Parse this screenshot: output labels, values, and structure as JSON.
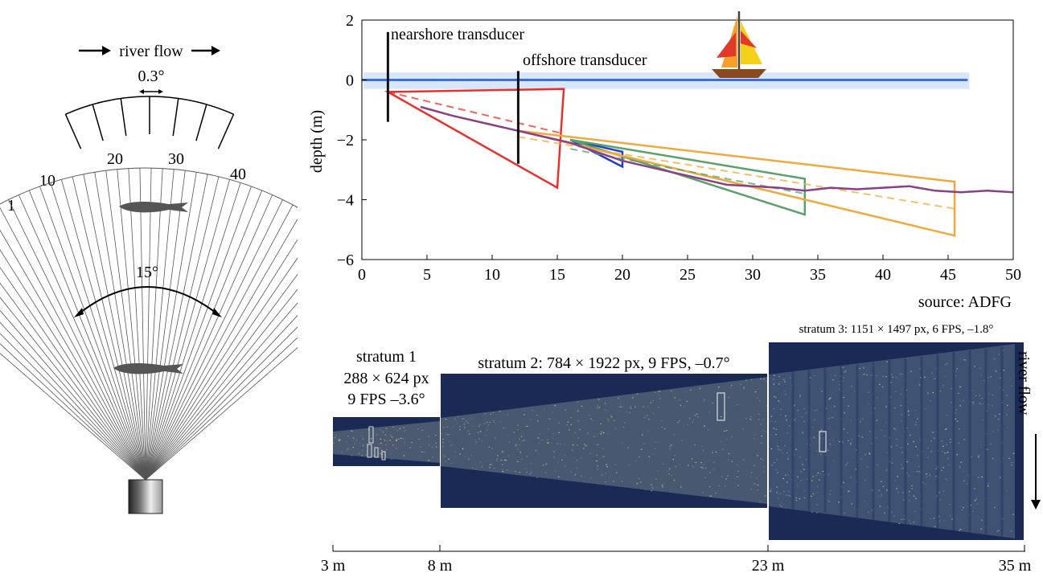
{
  "fan": {
    "flow_label": "river flow",
    "inset_angle": "0.3°",
    "beam_numbers": [
      "1",
      "10",
      "20",
      "30",
      "40"
    ],
    "fan_angle": "15°"
  },
  "depth_profile": {
    "ylabel": "depth (m)",
    "x_ticks": [
      "0",
      "5",
      "10",
      "15",
      "20",
      "25",
      "30",
      "35",
      "40",
      "45",
      "50"
    ],
    "y_ticks": [
      "2",
      "0",
      "−2",
      "−4",
      "−6"
    ],
    "nearshore_label": "nearshore transducer",
    "offshore_label": "offshore transducer",
    "source": "source: ADFG"
  },
  "chart_data": {
    "type": "line",
    "xlim": [
      0,
      50
    ],
    "ylim": [
      -6,
      2
    ],
    "ylabel": "depth (m)",
    "grid": false,
    "water_surface_y": 0,
    "transducers": [
      {
        "label": "nearshore transducer",
        "x": 2,
        "y_top": 1.6,
        "y_bottom": -1.4
      },
      {
        "label": "offshore transducer",
        "x": 12,
        "y_top": 0.3,
        "y_bottom": -2.8
      }
    ],
    "series": [
      {
        "color": "#e8312c",
        "kind": "beam",
        "points": [
          [
            2,
            -0.4
          ],
          [
            15.5,
            -0.3
          ],
          [
            15,
            -3.6
          ]
        ]
      },
      {
        "color": "#1f3fd0",
        "kind": "beam",
        "points": [
          [
            16,
            -2.0
          ],
          [
            20,
            -2.4
          ],
          [
            20,
            -2.9
          ]
        ]
      },
      {
        "color": "#5aa06a",
        "kind": "beam",
        "points": [
          [
            16,
            -2.0
          ],
          [
            34,
            -3.3
          ],
          [
            34,
            -4.5
          ]
        ]
      },
      {
        "color": "#f2a93b",
        "kind": "beam",
        "points": [
          [
            12,
            -1.7
          ],
          [
            45.5,
            -3.4
          ],
          [
            45.5,
            -5.2
          ]
        ]
      },
      {
        "color": "#e8312c",
        "kind": "beam-axis",
        "points": [
          [
            2,
            -0.4
          ],
          [
            15.5,
            -1.8
          ]
        ]
      },
      {
        "color": "#f2a93b",
        "kind": "beam-axis",
        "points": [
          [
            12,
            -1.9
          ],
          [
            45.5,
            -4.3
          ]
        ]
      },
      {
        "color": "#5aa06a",
        "kind": "beam-axis",
        "points": [
          [
            16,
            -2.3
          ],
          [
            34,
            -3.8
          ]
        ]
      },
      {
        "color": "#8a3f86",
        "kind": "bottom",
        "points": [
          [
            4.5,
            -0.9
          ],
          [
            7,
            -1.2
          ],
          [
            10,
            -1.5
          ],
          [
            13,
            -1.8
          ],
          [
            16,
            -2.1
          ],
          [
            18,
            -2.4
          ],
          [
            20,
            -2.7
          ],
          [
            23,
            -3.0
          ],
          [
            26,
            -3.3
          ],
          [
            28,
            -3.5
          ],
          [
            30,
            -3.55
          ],
          [
            32,
            -3.6
          ],
          [
            34,
            -3.7
          ],
          [
            36,
            -3.6
          ],
          [
            38,
            -3.65
          ],
          [
            40,
            -3.6
          ],
          [
            42,
            -3.55
          ],
          [
            44,
            -3.7
          ],
          [
            46,
            -3.75
          ],
          [
            48,
            -3.7
          ],
          [
            50,
            -3.75
          ]
        ]
      }
    ]
  },
  "strata": {
    "stratum1": [
      "stratum 1",
      "288 × 624 px",
      "9 FPS –3.6°"
    ],
    "stratum2": "stratum 2: 784 × 1922 px, 9 FPS, –0.7°",
    "stratum3": "stratum 3: 1151 × 1497 px, 6 FPS, –1.8°",
    "river_flow": "river flow",
    "distance_ticks": [
      "3 m",
      "8 m",
      "23 m",
      "35 m"
    ]
  },
  "colors": {
    "sonar_bg": "#1b2a55",
    "water_line": "#3b6fe0",
    "water_band": "#bcd6f5"
  }
}
